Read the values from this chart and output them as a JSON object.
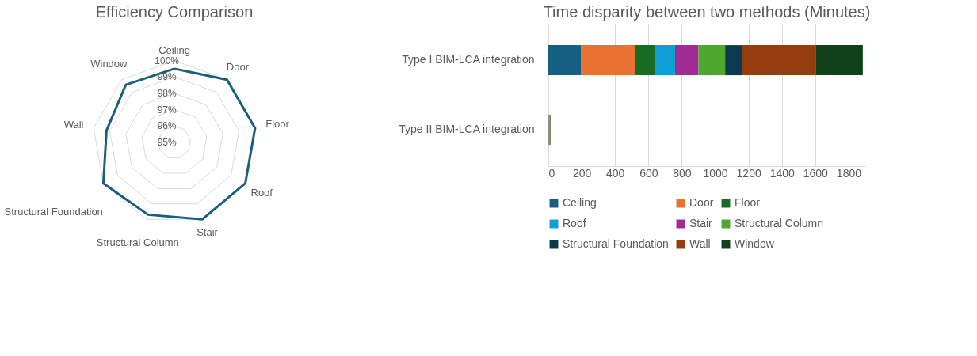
{
  "chart_data": [
    {
      "type": "radar",
      "title": "Efficiency Comparison",
      "categories": [
        "Ceiling",
        "Door",
        "Floor",
        "Roof",
        "Stair",
        "Structural Column",
        "Structural Foundation",
        "Wall",
        "Window"
      ],
      "series": [
        {
          "color": "#1a5f7a",
          "values": [
            99.5,
            100,
            100,
            100,
            100,
            99.7,
            100,
            99.2,
            99.6
          ]
        }
      ],
      "ylim": [
        95,
        100
      ],
      "yticks": [
        {
          "value": 95,
          "label": "95%"
        },
        {
          "value": 96,
          "label": "96%"
        },
        {
          "value": 97,
          "label": "97%"
        },
        {
          "value": 98,
          "label": "98%"
        },
        {
          "value": 99,
          "label": "99%"
        },
        {
          "value": 100,
          "label": "100%"
        }
      ],
      "marker": "none",
      "legend": false
    },
    {
      "type": "bar",
      "title": "Time disparity between two methods (Minutes)",
      "orientation": "horizontal",
      "stacked": true,
      "categories": [
        "Type I BIM-LCA integration",
        "Type II BIM-LCA integration"
      ],
      "series": [
        {
          "name": "Ceiling",
          "color": "#156082",
          "values": [
            195,
            2
          ]
        },
        {
          "name": "Door",
          "color": "#e97132",
          "values": [
            325,
            2
          ]
        },
        {
          "name": "Floor",
          "color": "#196b24",
          "values": [
            120,
            2
          ]
        },
        {
          "name": "Roof",
          "color": "#0f9ed5",
          "values": [
            120,
            2
          ]
        },
        {
          "name": "Stair",
          "color": "#a02b93",
          "values": [
            140,
            2
          ]
        },
        {
          "name": "Structural Column",
          "color": "#4ea72e",
          "values": [
            160,
            2
          ]
        },
        {
          "name": "Structural Foundation",
          "color": "#0e3a50",
          "values": [
            100,
            2
          ]
        },
        {
          "name": "Wall",
          "color": "#953d0f",
          "values": [
            445,
            2
          ]
        },
        {
          "name": "Window",
          "color": "#10401a",
          "values": [
            280,
            2
          ]
        }
      ],
      "xlim": [
        0,
        1900
      ],
      "xticks": [
        0,
        200,
        400,
        600,
        800,
        1000,
        1200,
        1400,
        1600,
        1800
      ],
      "grid": "x",
      "legend": "bottom"
    }
  ]
}
